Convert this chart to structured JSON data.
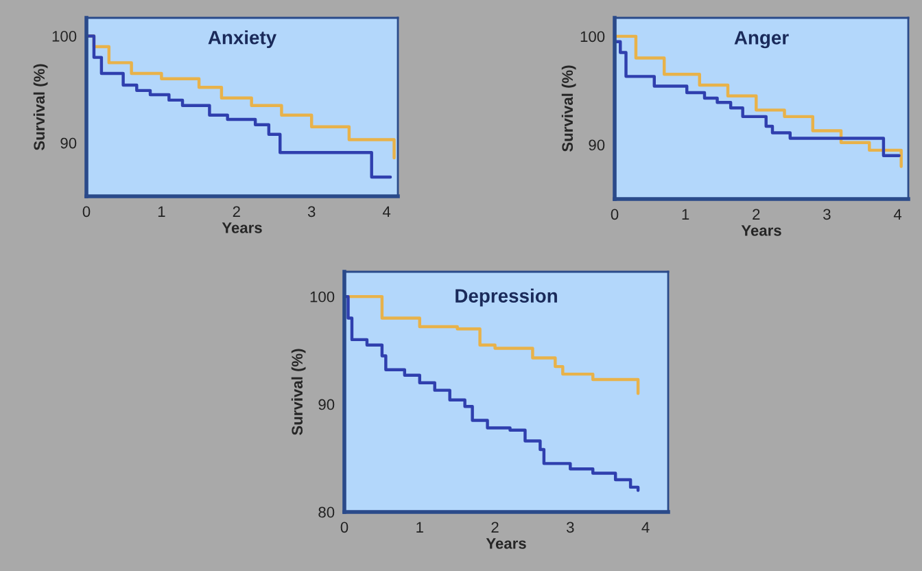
{
  "chart_data": [
    {
      "type": "step",
      "title": "Anxiety",
      "xlabel": "Years",
      "ylabel": "Survival (%)",
      "xlim": [
        0,
        4.15
      ],
      "ylim": [
        85,
        101.7
      ],
      "xticks": [
        0,
        1,
        2,
        3,
        4
      ],
      "yticks": [
        90,
        100
      ],
      "grid": false,
      "series": [
        {
          "color": "#e8b24a",
          "x": [
            0,
            0.1,
            0.3,
            0.6,
            1.0,
            1.5,
            1.8,
            2.2,
            2.6,
            3.0,
            3.5,
            4.1
          ],
          "values": [
            100,
            99,
            97.5,
            96.5,
            96.0,
            95.2,
            94.2,
            93.5,
            92.6,
            91.5,
            90.3,
            88.6
          ]
        },
        {
          "color": "#2f3fae",
          "x": [
            0,
            0.1,
            0.2,
            0.49,
            0.67,
            0.85,
            1.1,
            1.28,
            1.64,
            1.88,
            2.25,
            2.43,
            2.58,
            3.8,
            4.05
          ],
          "values": [
            100,
            98,
            96.5,
            95.4,
            94.9,
            94.5,
            94.0,
            93.5,
            92.6,
            92.2,
            91.7,
            90.8,
            89.1,
            86.8,
            86.8
          ]
        }
      ]
    },
    {
      "type": "step",
      "title": "Anger",
      "xlabel": "Years",
      "ylabel": "Survival (%)",
      "xlim": [
        0,
        4.15
      ],
      "ylim": [
        85,
        101.7
      ],
      "xticks": [
        0,
        1,
        2,
        3,
        4
      ],
      "yticks": [
        90,
        100
      ],
      "grid": false,
      "series": [
        {
          "color": "#e8b24a",
          "x": [
            0,
            0.3,
            0.7,
            1.2,
            1.6,
            2.0,
            2.4,
            2.8,
            3.2,
            3.6,
            4.05
          ],
          "values": [
            100,
            98,
            96.5,
            95.5,
            94.5,
            93.2,
            92.6,
            91.3,
            90.2,
            89.5,
            88.0
          ]
        },
        {
          "color": "#2f3fae",
          "x": [
            0,
            0.08,
            0.16,
            0.56,
            1.02,
            1.27,
            1.45,
            1.64,
            1.81,
            2.14,
            2.23,
            2.48,
            3.8,
            4.02
          ],
          "values": [
            99.5,
            98.5,
            96.3,
            95.4,
            94.8,
            94.3,
            93.9,
            93.4,
            92.6,
            91.7,
            91.1,
            90.6,
            89.0,
            89.0
          ]
        }
      ]
    },
    {
      "type": "step",
      "title": "Depression",
      "xlabel": "Years",
      "ylabel": "Survival (%)",
      "xlim": [
        0,
        4.3
      ],
      "ylim": [
        80,
        102.3
      ],
      "xticks": [
        0,
        1,
        2,
        3,
        4
      ],
      "yticks": [
        80,
        90,
        100
      ],
      "grid": false,
      "series": [
        {
          "color": "#e8b24a",
          "x": [
            0,
            0.5,
            1.0,
            1.5,
            1.8,
            2.0,
            2.5,
            2.8,
            2.9,
            3.3,
            3.9
          ],
          "values": [
            100,
            98.0,
            97.2,
            97.0,
            95.5,
            95.2,
            94.3,
            93.5,
            92.8,
            92.3,
            91.0
          ]
        },
        {
          "color": "#2f3fae",
          "x": [
            0,
            0.05,
            0.1,
            0.3,
            0.5,
            0.55,
            0.8,
            1.0,
            1.2,
            1.4,
            1.6,
            1.7,
            1.9,
            2.2,
            2.4,
            2.6,
            2.65,
            3.0,
            3.3,
            3.6,
            3.8,
            3.9
          ],
          "values": [
            100,
            98,
            96,
            95.5,
            94.5,
            93.2,
            92.7,
            92,
            91.3,
            90.4,
            89.8,
            88.5,
            87.8,
            87.6,
            86.6,
            85.8,
            84.5,
            84.0,
            83.6,
            83.0,
            82.3,
            82.0
          ]
        }
      ]
    }
  ]
}
